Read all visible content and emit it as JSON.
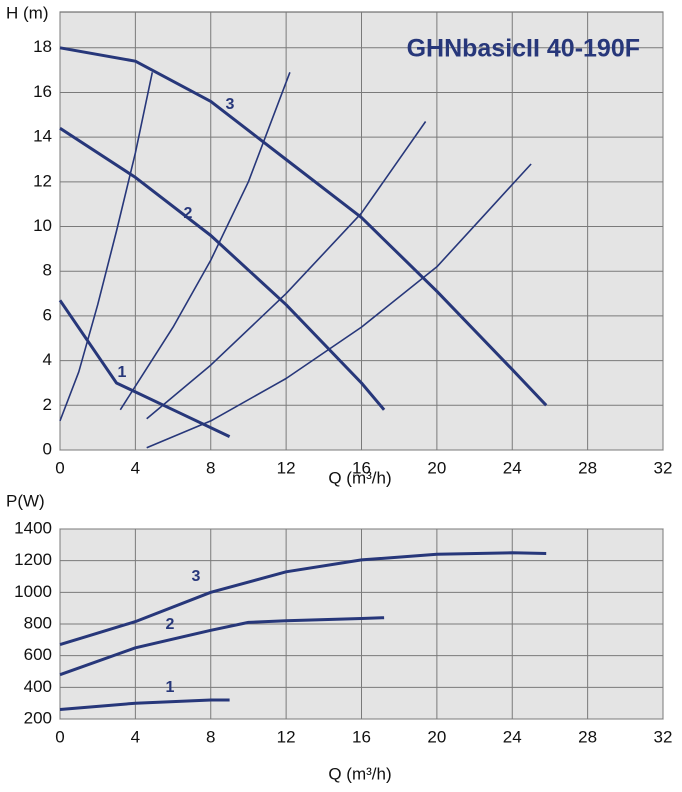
{
  "chart_data": [
    {
      "type": "line",
      "title": "GHNbasicII 40-190F",
      "ylabel": "H (m)",
      "xlabel": "Q (m³/h)",
      "xlim": [
        0,
        32
      ],
      "xticks": [
        0,
        4,
        8,
        12,
        16,
        20,
        24,
        28,
        32
      ],
      "ylim": [
        0,
        19.6
      ],
      "yticks": [
        0,
        2,
        4,
        6,
        8,
        10,
        12,
        14,
        16,
        18
      ],
      "grid": true,
      "series": [
        {
          "name": "3",
          "color": "#27377a",
          "x": [
            0,
            4,
            8,
            12,
            16,
            20,
            24,
            25.8
          ],
          "values": [
            18,
            17.4,
            15.6,
            13,
            10.4,
            7.1,
            3.6,
            2
          ]
        },
        {
          "name": "2",
          "color": "#27377a",
          "x": [
            0,
            4,
            8,
            12,
            16,
            17.2
          ],
          "values": [
            14.4,
            12.2,
            9.6,
            6.5,
            3,
            1.8
          ]
        },
        {
          "name": "1",
          "color": "#27377a",
          "x": [
            0,
            3,
            6,
            9
          ],
          "values": [
            6.7,
            3,
            1.8,
            0.6
          ]
        },
        {
          "color": "#27377a",
          "x": [
            0,
            1,
            2,
            3,
            4,
            4.9
          ],
          "values": [
            1.3,
            3.5,
            6.5,
            9.8,
            13.3,
            16.9
          ]
        },
        {
          "color": "#27377a",
          "x": [
            3.2,
            6,
            8,
            10,
            12.2
          ],
          "values": [
            1.8,
            5.5,
            8.5,
            12,
            16.9
          ]
        },
        {
          "color": "#27377a",
          "x": [
            4.6,
            8,
            12,
            16,
            19.4
          ],
          "values": [
            1.4,
            3.8,
            7,
            10.6,
            14.7
          ]
        },
        {
          "color": "#27377a",
          "x": [
            4.6,
            8,
            12,
            16,
            20,
            22.5,
            25
          ],
          "values": [
            0.1,
            1.3,
            3.2,
            5.5,
            8.2,
            10.5,
            12.8
          ]
        }
      ]
    },
    {
      "type": "line",
      "ylabel": "P(W)",
      "xlabel": "Q (m³/h)",
      "xlim": [
        0,
        32
      ],
      "xticks": [
        0,
        4,
        8,
        12,
        16,
        20,
        24,
        28,
        32
      ],
      "ylim": [
        200,
        1400
      ],
      "yticks": [
        200,
        400,
        600,
        800,
        1000,
        1200,
        1400
      ],
      "grid": true,
      "series": [
        {
          "name": "3",
          "color": "#27377a",
          "x": [
            0,
            4,
            8,
            12,
            16,
            20,
            24,
            25.8
          ],
          "values": [
            670,
            815,
            1000,
            1130,
            1205,
            1240,
            1250,
            1245
          ]
        },
        {
          "name": "2",
          "color": "#27377a",
          "x": [
            0,
            4,
            8,
            10,
            12,
            16,
            17.2
          ],
          "values": [
            480,
            650,
            760,
            810,
            820,
            835,
            840
          ]
        },
        {
          "name": "1",
          "color": "#27377a",
          "x": [
            0,
            4,
            8,
            9
          ],
          "values": [
            260,
            300,
            320,
            320
          ]
        }
      ]
    }
  ]
}
